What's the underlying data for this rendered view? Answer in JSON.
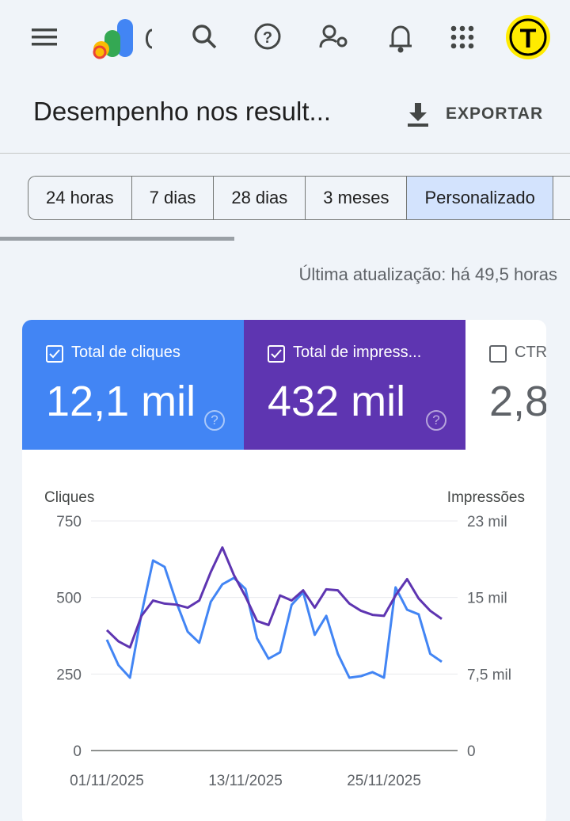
{
  "header": {
    "title": "Desempenho nos result...",
    "export": "EXPORTAR",
    "avatar": "T"
  },
  "tabs": [
    "24 horas",
    "7 dias",
    "28 dias",
    "3 meses",
    "Personalizado"
  ],
  "last_update": "Última atualização: há 49,5 horas",
  "metrics": [
    {
      "label": "Total de cliques",
      "value": "12,1 mil"
    },
    {
      "label": "Total de impress...",
      "value": "432 mil"
    },
    {
      "label": "CTR",
      "value": "2,8"
    }
  ],
  "chart_data": {
    "type": "line",
    "y_label": "Cliques",
    "y2_label": "Impressões",
    "categories": [
      "01/11/2025",
      null,
      null,
      null,
      null,
      null,
      null,
      null,
      null,
      null,
      null,
      null,
      "13/11/2025",
      null,
      null,
      null,
      null,
      null,
      null,
      null,
      null,
      null,
      null,
      null,
      "25/11/2025",
      null,
      null,
      null,
      null,
      null
    ],
    "series": [
      {
        "name": "Total de cliques",
        "color": "#4285f4",
        "values": [
          362,
          279,
          238,
          447,
          621,
          600,
          486,
          388,
          352,
          486,
          543,
          564,
          528,
          367,
          300,
          321,
          476,
          517,
          378,
          440,
          316,
          238,
          243,
          256,
          238,
          533,
          460,
          445,
          316,
          290
        ]
      },
      {
        "name": "Total de impressões",
        "color": "#5e35b1",
        "axis": "y2",
        "values": [
          11800,
          10700,
          10100,
          13200,
          14700,
          14400,
          14300,
          14000,
          14700,
          17500,
          19900,
          17200,
          15100,
          12700,
          12300,
          15200,
          14700,
          15700,
          14000,
          15800,
          15700,
          14400,
          13700,
          13300,
          13200,
          15200,
          16800,
          14900,
          13700,
          12900
        ]
      }
    ],
    "ylim": [
      0,
      750
    ],
    "yticks": [
      0,
      250,
      500,
      750
    ],
    "y2lim": [
      0,
      22500
    ],
    "y2ticks": [
      {
        "value": 0,
        "label": "0"
      },
      {
        "value": 7500,
        "label": "7,5 mil"
      },
      {
        "value": 15000,
        "label": "15 mil"
      },
      {
        "value": 22500,
        "label": "23 mil"
      }
    ],
    "grid": true
  }
}
